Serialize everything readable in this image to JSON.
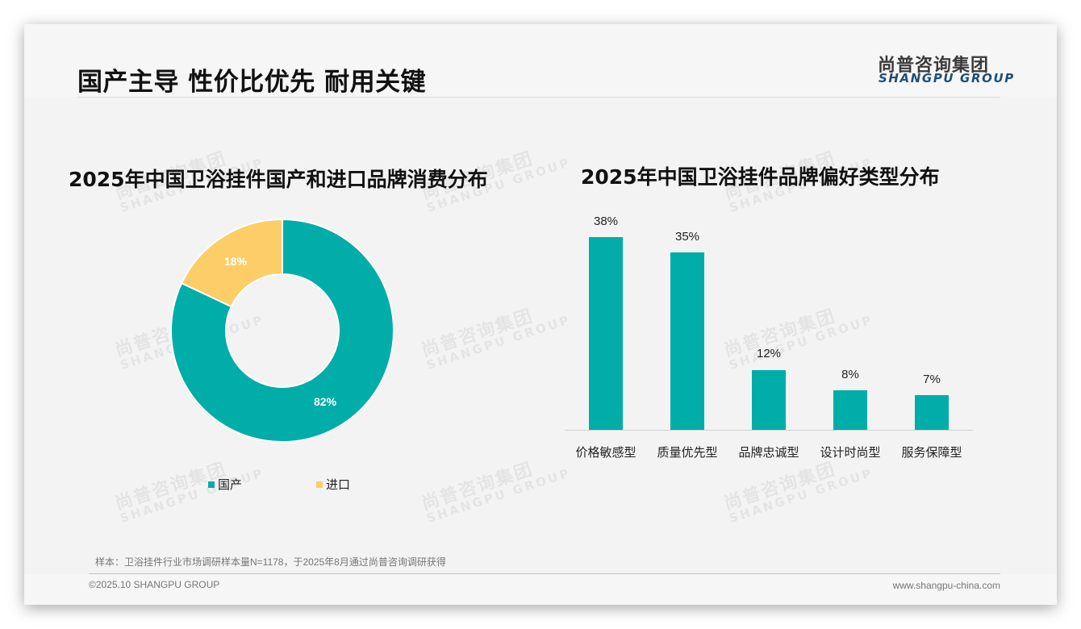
{
  "slide": {
    "title": "国产主导 性价比优先 耐用关键",
    "logo": {
      "cn": "尚普咨询集团",
      "en": "SHANGPU GROUP"
    },
    "watermark": {
      "cn": "尚普咨询集团",
      "en": "SHANGPU GROUP"
    },
    "note": "样本：卫浴挂件行业市场调研样本量N=1178，于2025年8月通过尚普咨询调研获得",
    "copyright": "©2025.10 SHANGPU GROUP",
    "website": "www.shangpu-china.com",
    "colors": {
      "teal": "#00ada8",
      "yellow": "#fdcd68",
      "background": "#f3f3f3"
    }
  },
  "chart_data": [
    {
      "type": "pie",
      "variant": "donut",
      "title": "2025年中国卫浴挂件国产和进口品牌消费分布",
      "categories": [
        "国产",
        "进口"
      ],
      "values": [
        82,
        18
      ],
      "labels": [
        "82%",
        "18%"
      ],
      "colors": [
        "#00ada8",
        "#fdcd68"
      ],
      "legend_position": "bottom",
      "unit": "%"
    },
    {
      "type": "bar",
      "title": "2025年中国卫浴挂件品牌偏好类型分布",
      "categories": [
        "价格敏感型",
        "质量优先型",
        "品牌忠诚型",
        "设计时尚型",
        "服务保障型"
      ],
      "values": [
        38,
        35,
        12,
        8,
        7
      ],
      "labels": [
        "38%",
        "35%",
        "12%",
        "8%",
        "7%"
      ],
      "color": "#00ada8",
      "xlabel": "",
      "ylabel": "",
      "ylim": [
        0,
        40
      ],
      "grid": false,
      "unit": "%"
    }
  ]
}
